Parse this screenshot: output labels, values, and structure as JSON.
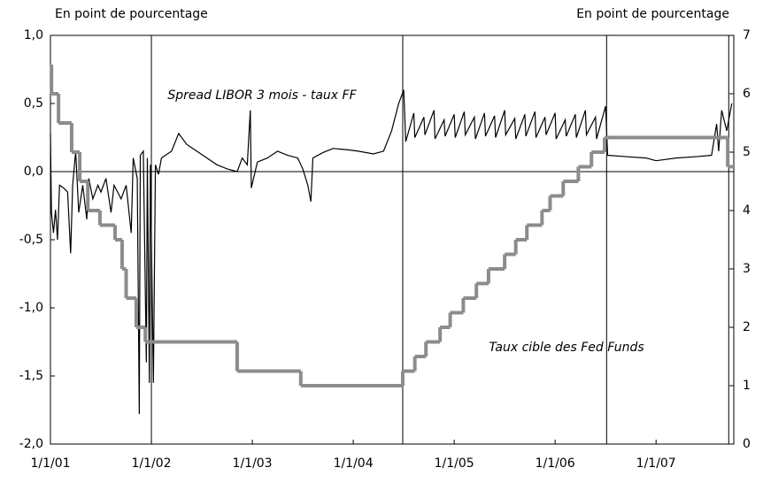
{
  "chart_data": {
    "type": "line",
    "left_axis_label": "En point de pourcentage",
    "right_axis_label": "En point de pourcentage",
    "annotations": [
      "Spread LIBOR 3 mois - taux FF",
      "Taux cible des Fed Funds"
    ],
    "xlim": [
      2001.0,
      2007.77
    ],
    "xticks": [
      {
        "value": 2001.0,
        "label": "1/1/01"
      },
      {
        "value": 2002.0,
        "label": "1/1/02"
      },
      {
        "value": 2003.0,
        "label": "1/1/03"
      },
      {
        "value": 2004.0,
        "label": "1/1/04"
      },
      {
        "value": 2005.0,
        "label": "1/1/05"
      },
      {
        "value": 2006.0,
        "label": "1/1/06"
      },
      {
        "value": 2007.0,
        "label": "1/1/07"
      }
    ],
    "ylim": [
      -2,
      1
    ],
    "yticks": [
      {
        "value": 1,
        "label": "1,0"
      },
      {
        "value": 0.5,
        "label": "0,5"
      },
      {
        "value": 0,
        "label": "0,0"
      },
      {
        "value": -0.5,
        "label": "-0,5"
      },
      {
        "value": -1,
        "label": "-1,0"
      },
      {
        "value": -1.5,
        "label": "-1,5"
      },
      {
        "value": -2,
        "label": "-2,0"
      }
    ],
    "y2lim": [
      0,
      7
    ],
    "y2ticks": [
      0,
      1,
      2,
      3,
      4,
      5,
      6,
      7
    ],
    "vertical_lines": [
      2002.0,
      2004.49,
      2006.51,
      2007.72
    ],
    "series": [
      {
        "name": "Spread LIBOR 3 mois - taux FF",
        "color": "#000000",
        "axis": "y",
        "step": false,
        "x": [
          2001.0,
          2001.01,
          2001.03,
          2001.05,
          2001.07,
          2001.09,
          2001.13,
          2001.17,
          2001.2,
          2001.22,
          2001.25,
          2001.28,
          2001.32,
          2001.36,
          2001.38,
          2001.42,
          2001.47,
          2001.5,
          2001.55,
          2001.6,
          2001.63,
          2001.7,
          2001.75,
          2001.8,
          2001.82,
          2001.86,
          2001.88,
          2001.89,
          2001.92,
          2001.95,
          2001.96,
          2001.98,
          2001.99,
          2002.02,
          2002.04,
          2002.07,
          2002.1,
          2002.2,
          2002.27,
          2002.35,
          2002.45,
          2002.55,
          2002.65,
          2002.75,
          2002.85,
          2002.9,
          2002.95,
          2002.98,
          2002.99,
          2003.05,
          2003.15,
          2003.25,
          2003.35,
          2003.45,
          2003.5,
          2003.55,
          2003.58,
          2003.6,
          2003.7,
          2003.8,
          2003.95,
          2004.05,
          2004.2,
          2004.3,
          2004.38,
          2004.45,
          2004.5,
          2004.52,
          2004.6,
          2004.61,
          2004.7,
          2004.71,
          2004.8,
          2004.81,
          2004.9,
          2004.91,
          2005.0,
          2005.01,
          2005.1,
          2005.11,
          2005.2,
          2005.21,
          2005.3,
          2005.31,
          2005.4,
          2005.41,
          2005.5,
          2005.51,
          2005.6,
          2005.61,
          2005.7,
          2005.71,
          2005.8,
          2005.81,
          2005.9,
          2005.91,
          2006.0,
          2006.01,
          2006.1,
          2006.11,
          2006.2,
          2006.21,
          2006.3,
          2006.31,
          2006.4,
          2006.41,
          2006.5,
          2006.52,
          2006.7,
          2006.9,
          2007.0,
          2007.2,
          2007.4,
          2007.55,
          2007.6,
          2007.62,
          2007.65,
          2007.7,
          2007.75
        ],
        "values": [
          0.28,
          -0.3,
          -0.45,
          -0.28,
          -0.5,
          -0.1,
          -0.12,
          -0.15,
          -0.6,
          -0.1,
          0.15,
          -0.3,
          -0.1,
          -0.35,
          -0.05,
          -0.2,
          -0.1,
          -0.15,
          -0.05,
          -0.3,
          -0.1,
          -0.2,
          -0.1,
          -0.45,
          0.1,
          -0.05,
          -1.78,
          0.12,
          0.15,
          -1.4,
          0.1,
          -1.55,
          0.05,
          -1.55,
          0.05,
          -0.02,
          0.1,
          0.15,
          0.28,
          0.2,
          0.15,
          0.1,
          0.05,
          0.02,
          0.0,
          0.1,
          0.05,
          0.45,
          -0.12,
          0.07,
          0.1,
          0.15,
          0.12,
          0.1,
          0.02,
          -0.1,
          -0.22,
          0.1,
          0.14,
          0.17,
          0.16,
          0.15,
          0.13,
          0.15,
          0.3,
          0.5,
          0.6,
          0.22,
          0.43,
          0.25,
          0.4,
          0.27,
          0.45,
          0.24,
          0.38,
          0.26,
          0.42,
          0.25,
          0.44,
          0.27,
          0.4,
          0.24,
          0.43,
          0.26,
          0.41,
          0.25,
          0.45,
          0.27,
          0.39,
          0.24,
          0.42,
          0.26,
          0.44,
          0.25,
          0.4,
          0.27,
          0.43,
          0.24,
          0.38,
          0.26,
          0.42,
          0.25,
          0.45,
          0.27,
          0.4,
          0.24,
          0.48,
          0.12,
          0.11,
          0.1,
          0.08,
          0.1,
          0.11,
          0.12,
          0.35,
          0.15,
          0.45,
          0.3,
          0.5
        ]
      },
      {
        "name": "Taux cible des Fed Funds",
        "color": "#8c8c8c",
        "axis": "y2",
        "step": true,
        "x": [
          2001.0,
          2001.01,
          2001.08,
          2001.21,
          2001.29,
          2001.37,
          2001.49,
          2001.64,
          2001.71,
          2001.75,
          2001.85,
          2001.94,
          2002.85,
          2003.48,
          2004.49,
          2004.61,
          2004.72,
          2004.86,
          2004.96,
          2005.09,
          2005.22,
          2005.34,
          2005.5,
          2005.61,
          2005.72,
          2005.87,
          2005.95,
          2006.08,
          2006.23,
          2006.36,
          2006.49,
          2007.71
        ],
        "values": [
          6.5,
          6.0,
          5.5,
          5.0,
          4.5,
          4.0,
          3.75,
          3.5,
          3.0,
          2.5,
          2.0,
          1.75,
          1.25,
          1.0,
          1.25,
          1.5,
          1.75,
          2.0,
          2.25,
          2.5,
          2.75,
          3.0,
          3.25,
          3.5,
          3.75,
          4.0,
          4.25,
          4.5,
          4.75,
          5.0,
          5.25,
          4.75
        ]
      }
    ]
  }
}
